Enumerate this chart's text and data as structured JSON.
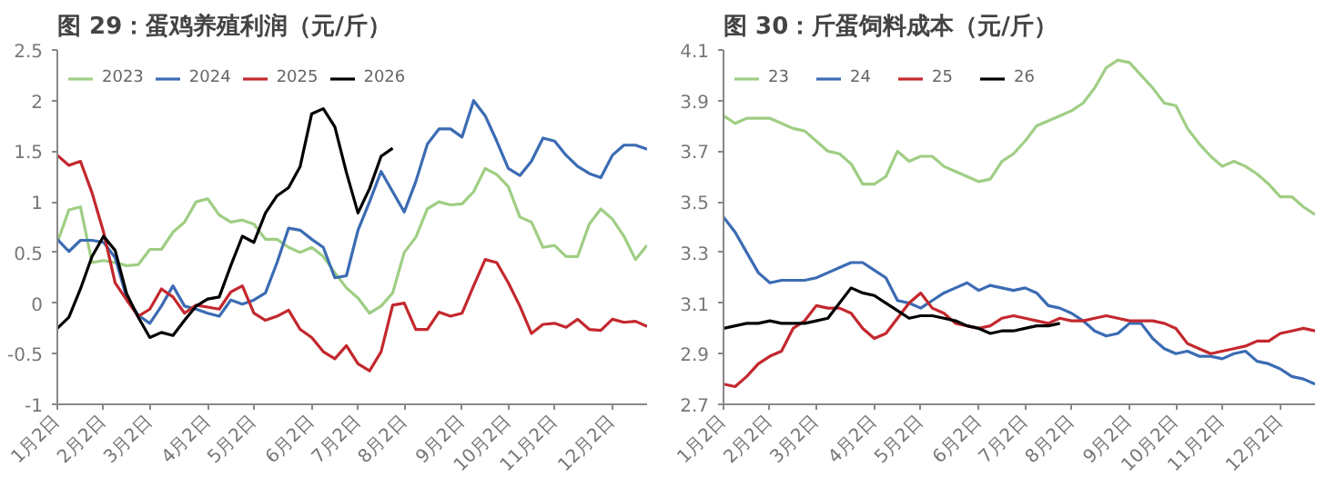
{
  "chart_data": [
    {
      "type": "line",
      "title": "图 29：蛋鸡养殖利润（元/斤）",
      "categories": [
        "1月2日",
        null,
        null,
        null,
        "2月2日",
        null,
        null,
        null,
        "3月2日",
        null,
        null,
        null,
        null,
        "4月2日",
        null,
        null,
        null,
        "5月2日",
        null,
        null,
        null,
        null,
        "6月2日",
        null,
        null,
        null,
        "7月2日",
        null,
        null,
        null,
        "8月2日",
        null,
        null,
        null,
        null,
        "9月2日",
        null,
        null,
        null,
        "10月2日",
        null,
        null,
        null,
        "11月2日",
        null,
        null,
        null,
        null,
        "12月2日",
        null,
        null,
        null
      ],
      "series": [
        {
          "name": "2023",
          "color": "#9fce84",
          "values": [
            0.6,
            0.92,
            0.95,
            0.4,
            0.42,
            0.4,
            0.37,
            0.38,
            0.53,
            0.53,
            0.7,
            0.8,
            1.0,
            1.03,
            0.87,
            0.8,
            0.82,
            0.78,
            0.63,
            0.63,
            0.55,
            0.5,
            0.55,
            0.46,
            0.3,
            0.15,
            0.05,
            -0.1,
            -0.03,
            0.1,
            0.5,
            0.65,
            0.93,
            1.0,
            0.97,
            0.98,
            1.1,
            1.33,
            1.27,
            1.15,
            0.85,
            0.8,
            0.55,
            0.57,
            0.46,
            0.46,
            0.78,
            0.93,
            0.83,
            0.66,
            0.43,
            0.57
          ]
        },
        {
          "name": "2024",
          "color": "#3b6bb3",
          "values": [
            0.63,
            0.51,
            0.62,
            0.62,
            0.6,
            0.45,
            0.05,
            -0.12,
            -0.2,
            -0.03,
            0.17,
            -0.03,
            -0.06,
            -0.1,
            -0.13,
            0.03,
            -0.01,
            0.03,
            0.1,
            0.4,
            0.74,
            0.72,
            0.63,
            0.55,
            0.25,
            0.27,
            0.72,
            1.0,
            1.3,
            1.1,
            0.9,
            1.2,
            1.57,
            1.72,
            1.72,
            1.64,
            2.0,
            1.85,
            1.6,
            1.33,
            1.26,
            1.4,
            1.63,
            1.6,
            1.46,
            1.35,
            1.28,
            1.24,
            1.46,
            1.56,
            1.56,
            1.52
          ]
        },
        {
          "name": "2025",
          "color": "#c3282e",
          "values": [
            1.46,
            1.36,
            1.4,
            1.09,
            0.7,
            0.2,
            0.03,
            -0.13,
            -0.06,
            0.14,
            0.06,
            -0.1,
            -0.02,
            -0.04,
            -0.06,
            0.11,
            0.17,
            -0.1,
            -0.17,
            -0.13,
            -0.07,
            -0.26,
            -0.34,
            -0.48,
            -0.55,
            -0.42,
            -0.6,
            -0.67,
            -0.48,
            -0.02,
            0,
            -0.26,
            -0.26,
            -0.09,
            -0.13,
            -0.1,
            0.17,
            0.43,
            0.4,
            0.2,
            -0.03,
            -0.3,
            -0.21,
            -0.2,
            -0.24,
            -0.16,
            -0.26,
            -0.27,
            -0.16,
            -0.19,
            -0.18,
            -0.23
          ]
        },
        {
          "name": "2026",
          "color": "#000000",
          "values": [
            -0.25,
            -0.14,
            0.14,
            0.46,
            0.66,
            0.52,
            0.09,
            -0.14,
            -0.34,
            -0.29,
            -0.32,
            -0.17,
            -0.03,
            0.04,
            0.06,
            0.37,
            0.66,
            0.6,
            0.89,
            1.06,
            1.14,
            1.35,
            1.87,
            1.92,
            1.74,
            1.29,
            0.89,
            1.13,
            1.45,
            1.53,
            null,
            null,
            null,
            null,
            null,
            null,
            null,
            null,
            null,
            null,
            null,
            null,
            null,
            null,
            null,
            null,
            null,
            null,
            null,
            null,
            null,
            null
          ]
        }
      ],
      "ylim": [
        -1,
        2.5
      ],
      "yticks": [
        -1,
        -0.5,
        0,
        0.5,
        1,
        1.5,
        2,
        2.5
      ],
      "grid": false,
      "legend": "top"
    },
    {
      "type": "line",
      "title": "图 30：斤蛋饲料成本（元/斤）",
      "categories": [
        "1月2日",
        null,
        null,
        null,
        "2月2日",
        null,
        null,
        null,
        "3月2日",
        null,
        null,
        null,
        null,
        "4月2日",
        null,
        null,
        null,
        "5月2日",
        null,
        null,
        null,
        null,
        "6月2日",
        null,
        null,
        null,
        "7月2日",
        null,
        null,
        null,
        "8月2日",
        null,
        null,
        null,
        null,
        "9月2日",
        null,
        null,
        null,
        "10月2日",
        null,
        null,
        null,
        "11月2日",
        null,
        null,
        null,
        null,
        "12月2日",
        null,
        null,
        null
      ],
      "series": [
        {
          "name": "23",
          "color": "#9fce84",
          "values": [
            3.84,
            3.81,
            3.83,
            3.83,
            3.83,
            3.81,
            3.79,
            3.78,
            3.74,
            3.7,
            3.69,
            3.65,
            3.57,
            3.57,
            3.6,
            3.7,
            3.66,
            3.68,
            3.68,
            3.64,
            3.62,
            3.6,
            3.58,
            3.59,
            3.66,
            3.69,
            3.74,
            3.8,
            3.82,
            3.84,
            3.86,
            3.89,
            3.95,
            4.03,
            4.06,
            4.05,
            4.0,
            3.95,
            3.89,
            3.88,
            3.79,
            3.73,
            3.68,
            3.64,
            3.66,
            3.64,
            3.61,
            3.57,
            3.52,
            3.52,
            3.48,
            3.45
          ]
        },
        {
          "name": "24",
          "color": "#3b6bb3",
          "values": [
            3.44,
            3.38,
            3.3,
            3.22,
            3.18,
            3.19,
            3.19,
            3.19,
            3.2,
            3.22,
            3.24,
            3.26,
            3.26,
            3.23,
            3.2,
            3.11,
            3.1,
            3.08,
            3.11,
            3.14,
            3.16,
            3.18,
            3.15,
            3.17,
            3.16,
            3.15,
            3.16,
            3.14,
            3.09,
            3.08,
            3.06,
            3.03,
            2.99,
            2.97,
            2.98,
            3.02,
            3.02,
            2.96,
            2.92,
            2.9,
            2.91,
            2.89,
            2.89,
            2.88,
            2.9,
            2.91,
            2.87,
            2.86,
            2.84,
            2.81,
            2.8,
            2.78
          ]
        },
        {
          "name": "25",
          "color": "#c3282e",
          "values": [
            2.78,
            2.77,
            2.81,
            2.86,
            2.89,
            2.91,
            3.0,
            3.03,
            3.09,
            3.08,
            3.08,
            3.06,
            3.0,
            2.96,
            2.98,
            3.04,
            3.1,
            3.14,
            3.08,
            3.06,
            3.02,
            3.01,
            3.0,
            3.01,
            3.04,
            3.05,
            3.04,
            3.03,
            3.02,
            3.04,
            3.03,
            3.03,
            3.04,
            3.05,
            3.04,
            3.03,
            3.03,
            3.03,
            3.02,
            3.0,
            2.94,
            2.92,
            2.9,
            2.91,
            2.92,
            2.93,
            2.95,
            2.95,
            2.98,
            2.99,
            3.0,
            2.99
          ]
        },
        {
          "name": "26",
          "color": "#000000",
          "values": [
            3.0,
            3.01,
            3.02,
            3.02,
            3.03,
            3.02,
            3.02,
            3.02,
            3.03,
            3.04,
            3.1,
            3.16,
            3.14,
            3.13,
            3.1,
            3.07,
            3.04,
            3.05,
            3.05,
            3.04,
            3.03,
            3.01,
            3.0,
            2.98,
            2.99,
            2.99,
            3.0,
            3.01,
            3.01,
            3.02,
            null,
            null,
            null,
            null,
            null,
            null,
            null,
            null,
            null,
            null,
            null,
            null,
            null,
            null,
            null,
            null,
            null,
            null,
            null,
            null,
            null,
            null
          ]
        }
      ],
      "ylim": [
        2.7,
        4.1
      ],
      "yticks": [
        2.7,
        2.9,
        3.1,
        3.3,
        3.5,
        3.7,
        3.9,
        4.1
      ],
      "grid": false,
      "legend": "top"
    }
  ]
}
